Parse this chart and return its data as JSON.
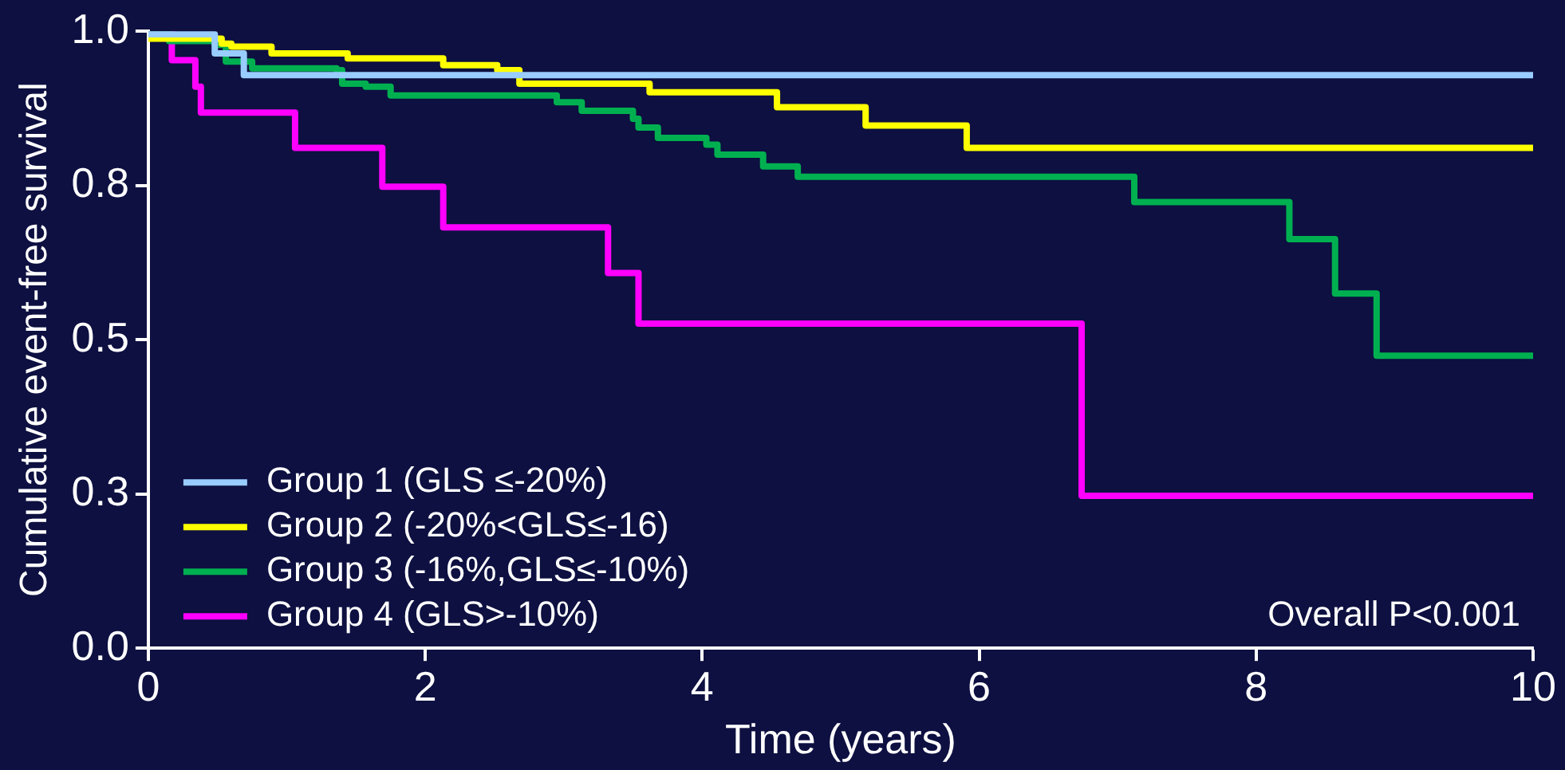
{
  "chart_data": {
    "type": "step",
    "xlabel": "Time (years)",
    "ylabel": "Cumulative event-free survival",
    "xlim": [
      0,
      10
    ],
    "xticks": [
      0,
      2,
      4,
      6,
      8,
      10
    ],
    "ylim": [
      0,
      1
    ],
    "yticks": [
      {
        "value": 0,
        "label": "0.0"
      },
      {
        "value": 0.25,
        "label": "0.3"
      },
      {
        "value": 0.5,
        "label": "0.5"
      },
      {
        "value": 0.75,
        "label": "0.8"
      },
      {
        "value": 1,
        "label": "1.0"
      }
    ],
    "grid": false,
    "legend": "bottom left",
    "marker": "none",
    "line_style": "solid",
    "annotations": [
      "Overall P<0.001"
    ],
    "series": [
      {
        "name": "Group 1 (GLS ≤-20%)",
        "color": "#99ccff",
        "x": [
          0,
          0.48,
          0.69,
          10
        ],
        "values": [
          0.995,
          0.964,
          0.929,
          0.929
        ]
      },
      {
        "name": "Group 2 (-20%<GLS≤-16)",
        "color": "#ffff00",
        "x": [
          0,
          0.53,
          0.6,
          0.89,
          1.44,
          2.13,
          2.52,
          2.68,
          3.62,
          4.54,
          5.18,
          5.91,
          10
        ],
        "values": [
          0.988,
          0.98,
          0.975,
          0.964,
          0.956,
          0.945,
          0.937,
          0.915,
          0.901,
          0.877,
          0.847,
          0.811,
          0.811
        ]
      },
      {
        "name": "Group 3 (-16%,GLS≤-10%)",
        "color": "#00b050",
        "x": [
          0,
          0.15,
          0.48,
          0.56,
          0.75,
          1.36,
          1.4,
          1.57,
          1.75,
          2.95,
          3.13,
          3.5,
          3.54,
          3.68,
          4.03,
          4.11,
          4.44,
          4.69,
          7.12,
          8.24,
          8.57,
          8.87,
          10
        ],
        "values": [
          1,
          0.984,
          0.978,
          0.951,
          0.94,
          0.937,
          0.915,
          0.91,
          0.896,
          0.885,
          0.871,
          0.858,
          0.844,
          0.827,
          0.816,
          0.8,
          0.781,
          0.764,
          0.723,
          0.663,
          0.575,
          0.474,
          0.474
        ]
      },
      {
        "name": "Group 4 (GLS>-10%)",
        "color": "#ff00ff",
        "x": [
          0,
          0.17,
          0.34,
          0.38,
          1.06,
          1.69,
          2.13,
          3.32,
          3.54,
          6.74,
          10
        ],
        "values": [
          1,
          0.953,
          0.91,
          0.868,
          0.811,
          0.748,
          0.682,
          0.608,
          0.526,
          0.247,
          0.247
        ]
      }
    ]
  }
}
